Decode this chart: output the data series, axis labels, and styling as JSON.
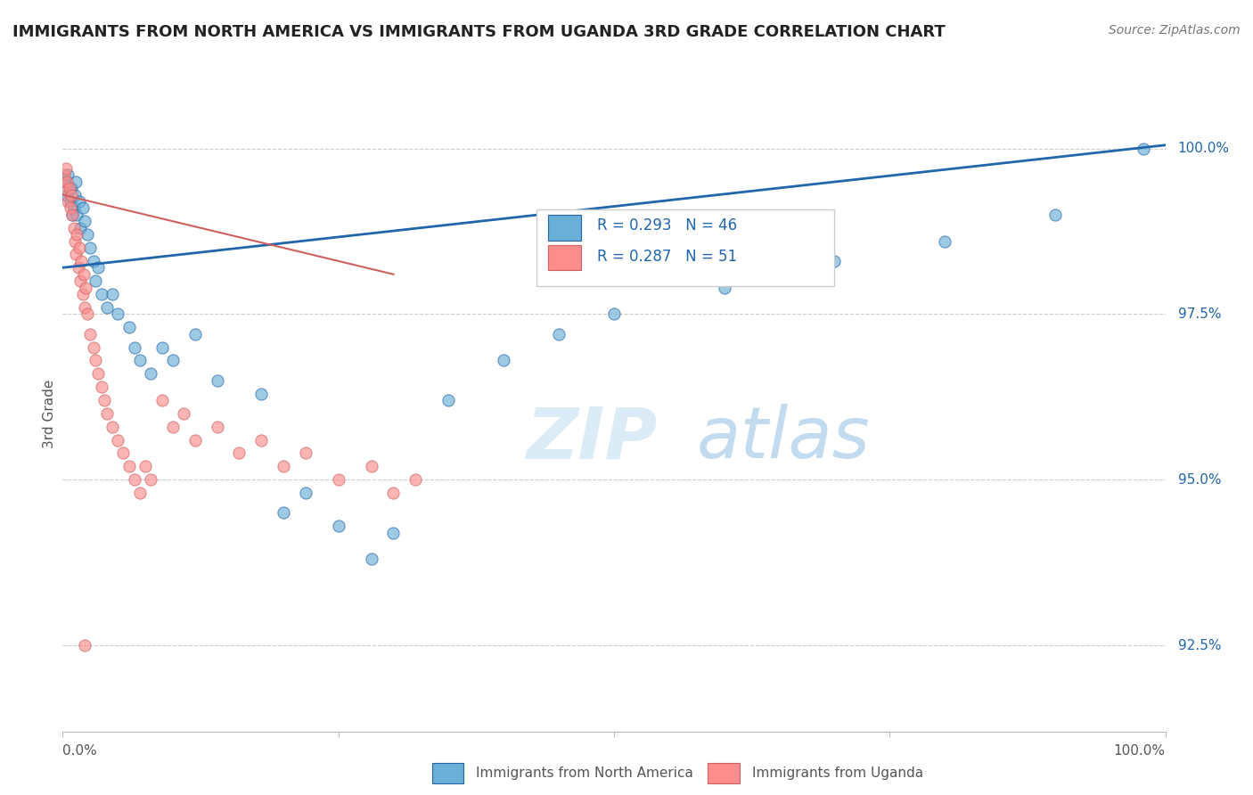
{
  "title": "IMMIGRANTS FROM NORTH AMERICA VS IMMIGRANTS FROM UGANDA 3RD GRADE CORRELATION CHART",
  "source": "Source: ZipAtlas.com",
  "ylabel": "3rd Grade",
  "y_ticks": [
    92.5,
    95.0,
    97.5,
    100.0
  ],
  "x_range": [
    0.0,
    1.0
  ],
  "y_range": [
    91.2,
    100.8
  ],
  "legend_blue": {
    "R": 0.293,
    "N": 46,
    "label": "Immigrants from North America"
  },
  "legend_pink": {
    "R": 0.287,
    "N": 51,
    "label": "Immigrants from Uganda"
  },
  "blue_color": "#6baed6",
  "pink_color": "#fc8d8d",
  "blue_line_color": "#2166ac",
  "pink_edge_color": "#d06060",
  "background_color": "#ffffff",
  "blue_points_x": [
    0.002,
    0.004,
    0.005,
    0.007,
    0.008,
    0.009,
    0.01,
    0.011,
    0.012,
    0.013,
    0.015,
    0.016,
    0.018,
    0.02,
    0.022,
    0.025,
    0.028,
    0.03,
    0.032,
    0.035,
    0.04,
    0.045,
    0.05,
    0.06,
    0.065,
    0.07,
    0.08,
    0.09,
    0.1,
    0.12,
    0.14,
    0.18,
    0.2,
    0.22,
    0.25,
    0.28,
    0.3,
    0.35,
    0.4,
    0.45,
    0.5,
    0.6,
    0.7,
    0.8,
    0.9,
    0.98
  ],
  "blue_points_y": [
    99.5,
    99.3,
    99.6,
    99.2,
    99.4,
    99.0,
    99.1,
    99.3,
    99.5,
    99.0,
    99.2,
    98.8,
    99.1,
    98.9,
    98.7,
    98.5,
    98.3,
    98.0,
    98.2,
    97.8,
    97.6,
    97.8,
    97.5,
    97.3,
    97.0,
    96.8,
    96.6,
    97.0,
    96.8,
    97.2,
    96.5,
    96.3,
    94.5,
    94.8,
    94.3,
    93.8,
    94.2,
    96.2,
    96.8,
    97.2,
    97.5,
    97.9,
    98.3,
    98.6,
    99.0,
    100.0
  ],
  "pink_points_x": [
    0.001,
    0.002,
    0.003,
    0.004,
    0.005,
    0.006,
    0.007,
    0.008,
    0.009,
    0.01,
    0.011,
    0.012,
    0.013,
    0.014,
    0.015,
    0.016,
    0.017,
    0.018,
    0.019,
    0.02,
    0.021,
    0.022,
    0.025,
    0.028,
    0.03,
    0.032,
    0.035,
    0.038,
    0.04,
    0.045,
    0.05,
    0.055,
    0.06,
    0.065,
    0.07,
    0.075,
    0.08,
    0.09,
    0.1,
    0.11,
    0.12,
    0.14,
    0.16,
    0.18,
    0.2,
    0.22,
    0.25,
    0.28,
    0.3,
    0.32,
    0.02
  ],
  "pink_points_y": [
    99.6,
    99.4,
    99.7,
    99.5,
    99.2,
    99.4,
    99.1,
    99.3,
    99.0,
    98.8,
    98.6,
    98.4,
    98.7,
    98.2,
    98.5,
    98.0,
    98.3,
    97.8,
    98.1,
    97.6,
    97.9,
    97.5,
    97.2,
    97.0,
    96.8,
    96.6,
    96.4,
    96.2,
    96.0,
    95.8,
    95.6,
    95.4,
    95.2,
    95.0,
    94.8,
    95.2,
    95.0,
    96.2,
    95.8,
    96.0,
    95.6,
    95.8,
    95.4,
    95.6,
    95.2,
    95.4,
    95.0,
    95.2,
    94.8,
    95.0,
    92.5
  ]
}
